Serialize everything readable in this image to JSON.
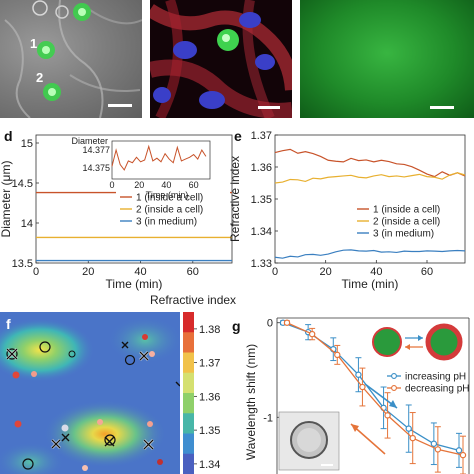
{
  "top_panels": {
    "brightfield": {
      "markers": [
        "1",
        "2"
      ]
    },
    "fluorescence": {},
    "medium": {}
  },
  "colors": {
    "series1": "#c8532a",
    "series2": "#e8b030",
    "series3": "#3a7fc0",
    "increasing": "#3a8fc7",
    "decreasing": "#e5743a"
  },
  "panel_d": {
    "label": "d",
    "chart_data": {
      "type": "line",
      "xlabel": "Time (min)",
      "ylabel": "Diameter (μm)",
      "xlim": [
        0,
        75
      ],
      "ylim": [
        13.5,
        15.1
      ],
      "xticks": [
        "0",
        "20",
        "40",
        "60"
      ],
      "yticks": [
        "13.5",
        "14",
        "14.5",
        "15"
      ],
      "series": [
        {
          "name": "1 (inside a cell)",
          "x": [
            0,
            75
          ],
          "y": [
            14.38,
            14.38
          ]
        },
        {
          "name": "2 (inside a cell)",
          "x": [
            0,
            75
          ],
          "y": [
            13.82,
            13.82
          ]
        },
        {
          "name": "3 (in medium)",
          "x": [
            0,
            75
          ],
          "y": [
            13.53,
            13.53
          ]
        }
      ],
      "legend": [
        "1 (inside a cell)",
        "2 (inside a cell)",
        "3 (in medium)"
      ],
      "inset": {
        "xlabel": "Time (min)",
        "ylabel": "Diameter",
        "xticks": [
          "0",
          "20",
          "40",
          "60"
        ],
        "yticks": [
          "14.377",
          "14.375"
        ],
        "ylim": [
          14.3738,
          14.378
        ],
        "x": [
          0,
          3,
          6,
          9,
          12,
          15,
          18,
          21,
          24,
          27,
          30,
          33,
          36,
          39,
          42,
          45,
          48,
          51,
          54,
          57,
          60,
          63,
          66,
          69
        ],
        "y": [
          14.3752,
          14.377,
          14.3754,
          14.3748,
          14.3758,
          14.3756,
          14.3762,
          14.3757,
          14.3759,
          14.3774,
          14.3758,
          14.3761,
          14.3757,
          14.3766,
          14.376,
          14.3756,
          14.3773,
          14.3758,
          14.376,
          14.3762,
          14.3765,
          14.376,
          14.377,
          14.3763
        ]
      }
    }
  },
  "panel_e": {
    "label": "e",
    "chart_data": {
      "type": "line",
      "xlabel": "Time (min)",
      "ylabel": "Refractive index",
      "xlim": [
        0,
        75
      ],
      "ylim": [
        1.33,
        1.37
      ],
      "xticks": [
        "0",
        "20",
        "40",
        "60"
      ],
      "yticks": [
        "1.33",
        "1.34",
        "1.35",
        "1.36",
        "1.37"
      ],
      "series": [
        {
          "name": "1 (inside a cell)",
          "x": [
            0,
            3,
            6,
            9,
            12,
            15,
            18,
            21,
            24,
            27,
            30,
            33,
            36,
            39,
            42,
            45,
            48,
            51,
            54,
            57,
            60,
            63,
            66,
            69,
            72,
            75
          ],
          "y": [
            1.3645,
            1.3651,
            1.3655,
            1.3643,
            1.3648,
            1.3642,
            1.3633,
            1.3621,
            1.3618,
            1.3616,
            1.3627,
            1.362,
            1.3622,
            1.3616,
            1.3621,
            1.3617,
            1.361,
            1.3608,
            1.3601,
            1.359,
            1.3578,
            1.357,
            1.3585,
            1.3574,
            1.3582,
            1.3572
          ]
        },
        {
          "name": "2 (inside a cell)",
          "x": [
            0,
            3,
            6,
            9,
            12,
            15,
            18,
            21,
            24,
            27,
            30,
            33,
            36,
            39,
            42,
            45,
            48,
            51,
            54,
            57,
            60,
            63,
            66,
            69,
            72,
            75
          ],
          "y": [
            1.355,
            1.3553,
            1.3561,
            1.356,
            1.3555,
            1.3565,
            1.3563,
            1.3568,
            1.357,
            1.3572,
            1.3574,
            1.3568,
            1.3566,
            1.3572,
            1.3576,
            1.357,
            1.3572,
            1.3569,
            1.3573,
            1.3577,
            1.357,
            1.3568,
            1.3562,
            1.3575,
            1.3582,
            1.3575
          ]
        },
        {
          "name": "3 (in medium)",
          "x": [
            0,
            3,
            6,
            9,
            12,
            15,
            18,
            21,
            24,
            27,
            30,
            33,
            36,
            39,
            42,
            45,
            48,
            51,
            54,
            57,
            60,
            63,
            66,
            69,
            72,
            75
          ],
          "y": [
            1.3318,
            1.3315,
            1.3321,
            1.3319,
            1.3326,
            1.3327,
            1.3324,
            1.3328,
            1.3335,
            1.334,
            1.3341,
            1.3338,
            1.3337,
            1.3339,
            1.3334,
            1.3335,
            1.3333,
            1.3337,
            1.3336,
            1.3336,
            1.3338,
            1.3337,
            1.3336,
            1.3338,
            1.3339,
            1.3338
          ]
        }
      ],
      "legend": [
        "1 (inside a cell)",
        "2 (inside a cell)",
        "3 (in medium)"
      ]
    }
  },
  "panel_f": {
    "label": "f",
    "colorbar_title": "Refractive index",
    "colorbar_ticks": [
      "1.38",
      "1.37",
      "1.36",
      "1.35",
      "1.34"
    ],
    "colorbar_range": [
      1.337,
      1.385
    ]
  },
  "panel_g": {
    "label": "g",
    "chart_data": {
      "type": "line",
      "xlabel": "",
      "ylabel": "Wavelength shift (nm)",
      "yticks": [
        "0",
        "-1"
      ],
      "ylim": [
        -1.6,
        0.05
      ],
      "series": [
        {
          "name": "increasing pH",
          "x": [
            1,
            2,
            3,
            4,
            5,
            6,
            7,
            8
          ],
          "y": [
            0.0,
            -0.1,
            -0.28,
            -0.55,
            -0.9,
            -1.12,
            -1.28,
            -1.35
          ],
          "err": [
            0.02,
            0.08,
            0.12,
            0.18,
            0.22,
            0.25,
            0.22,
            0.18
          ]
        },
        {
          "name": "decreasing pH",
          "x": [
            1,
            2,
            3,
            4,
            5,
            6,
            7,
            8
          ],
          "y": [
            0.0,
            -0.12,
            -0.34,
            -0.68,
            -0.98,
            -1.22,
            -1.34,
            -1.4
          ],
          "err": [
            0.02,
            0.06,
            0.1,
            0.2,
            0.24,
            0.27,
            0.24,
            0.2
          ]
        }
      ],
      "legend": [
        "increasing pH",
        "decreasing pH"
      ]
    }
  }
}
